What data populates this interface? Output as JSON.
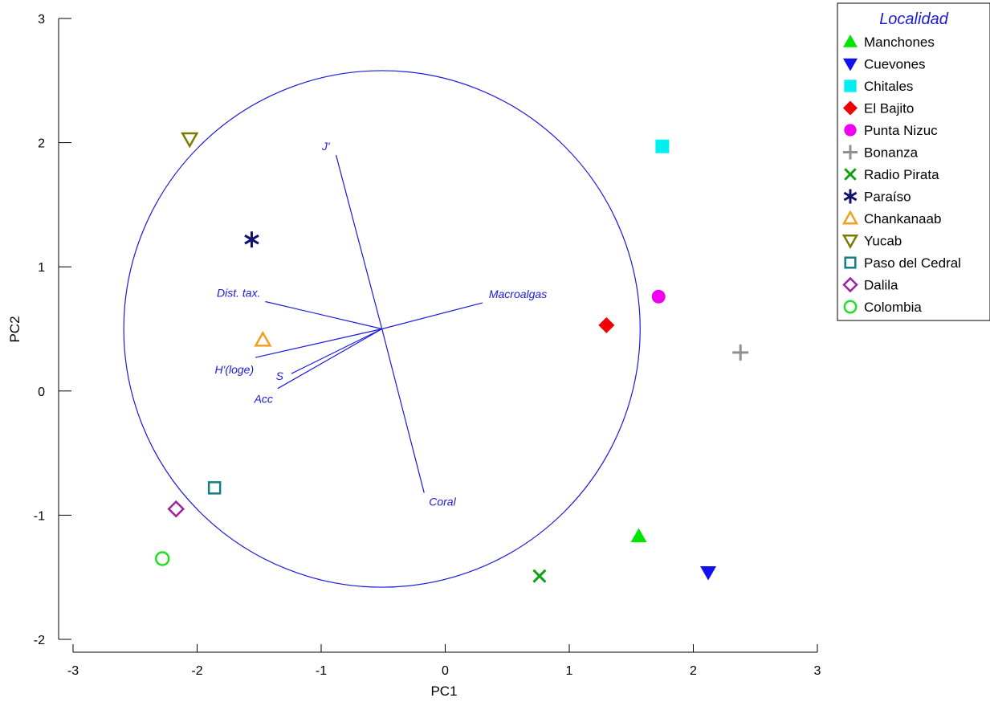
{
  "chart_data": {
    "type": "scatter",
    "xlabel": "PC1",
    "ylabel": "PC2",
    "xlim": [
      -3,
      3
    ],
    "ylim": [
      -2,
      3
    ],
    "xticks": [
      "-3",
      "-2",
      "-1",
      "0",
      "1",
      "2",
      "3"
    ],
    "yticks": [
      "-2",
      "-1",
      "0",
      "1",
      "2",
      "3"
    ],
    "legend": {
      "title": "Localidad",
      "placement": "top-right outside"
    },
    "series": [
      {
        "name": "Manchones",
        "marker": "triangle-up-filled",
        "color": "#00e600",
        "x": 1.56,
        "y": -1.17
      },
      {
        "name": "Cuevones",
        "marker": "triangle-down-filled",
        "color": "#1010f0",
        "x": 2.12,
        "y": -1.46
      },
      {
        "name": "Chitales",
        "marker": "square-filled",
        "color": "#00f0f0",
        "x": 1.75,
        "y": 1.97
      },
      {
        "name": "El Bajito",
        "marker": "diamond-filled",
        "color": "#f00000",
        "x": 1.3,
        "y": 0.53
      },
      {
        "name": "Punta Nizuc",
        "marker": "circle-filled",
        "color": "#f000f0",
        "x": 1.72,
        "y": 0.76
      },
      {
        "name": "Bonanza",
        "marker": "plus",
        "color": "#909090",
        "x": 2.38,
        "y": 0.31
      },
      {
        "name": "Radio Pirata",
        "marker": "x",
        "color": "#10a010",
        "x": 0.76,
        "y": -1.49
      },
      {
        "name": "Paraíso",
        "marker": "asterisk",
        "color": "#10106e",
        "x": -1.56,
        "y": 1.22
      },
      {
        "name": "Chankanaab",
        "marker": "triangle-up-open",
        "color": "#f0a020",
        "x": -1.47,
        "y": 0.41
      },
      {
        "name": "Yucab",
        "marker": "triangle-down-open",
        "color": "#7a7a00",
        "x": -2.06,
        "y": 2.03
      },
      {
        "name": "Paso del Cedral",
        "marker": "square-open",
        "color": "#108080",
        "x": -1.86,
        "y": -0.78
      },
      {
        "name": "Dalila",
        "marker": "diamond-open",
        "color": "#a020a0",
        "x": -2.17,
        "y": -0.95
      },
      {
        "name": "Colombia",
        "marker": "circle-open",
        "color": "#20e020",
        "x": -2.28,
        "y": -1.35
      }
    ],
    "vectors": {
      "color": "#1a1adc",
      "origin": [
        -0.51,
        0.5
      ],
      "items": [
        {
          "label": "J'",
          "x": -0.88,
          "y": 1.9
        },
        {
          "label": "Macroalgas",
          "x": 0.3,
          "y": 0.71
        },
        {
          "label": "Dist. tax.",
          "x": -1.45,
          "y": 0.72
        },
        {
          "label": "H'(loge)",
          "x": -1.53,
          "y": 0.27
        },
        {
          "label": "S",
          "x": -1.24,
          "y": 0.14
        },
        {
          "label": "Acc",
          "x": -1.35,
          "y": 0.02
        },
        {
          "label": "Coral",
          "x": -0.17,
          "y": -0.82
        }
      ]
    },
    "circle": {
      "center": [
        -0.51,
        0.5
      ],
      "radius_y": 2.08
    }
  }
}
